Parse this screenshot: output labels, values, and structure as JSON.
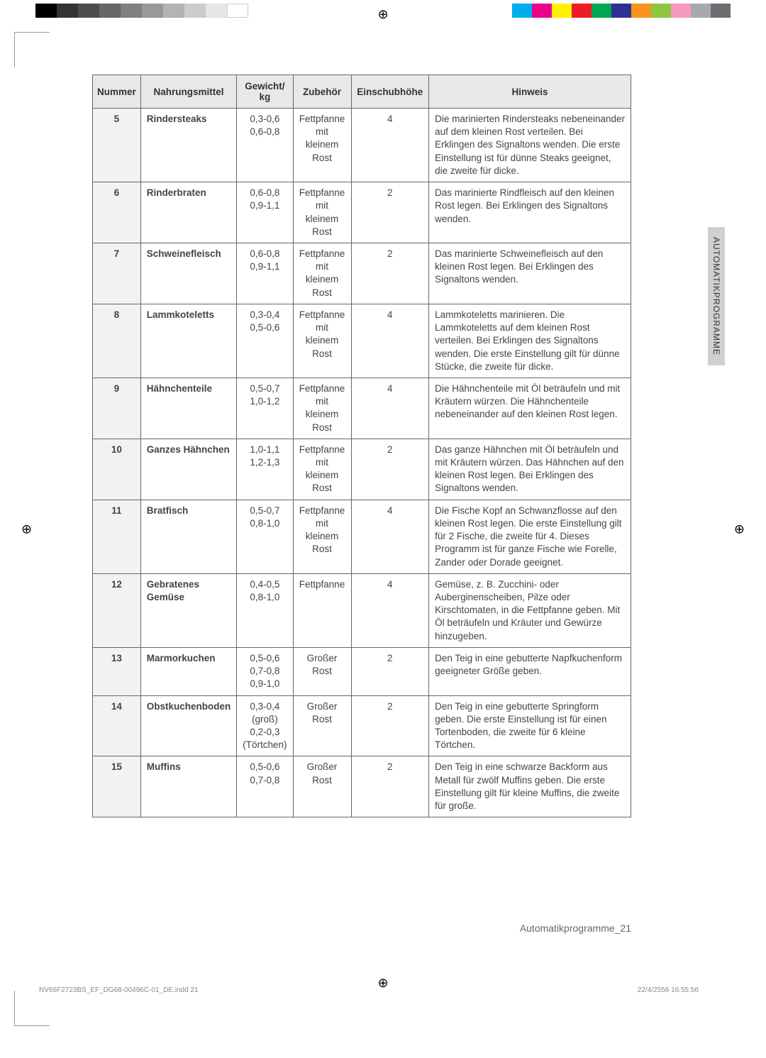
{
  "grey_shades": [
    "#000000",
    "#333333",
    "#4d4d4d",
    "#666666",
    "#808080",
    "#999999",
    "#b3b3b3",
    "#cccccc",
    "#e6e6e6",
    "#ffffff"
  ],
  "color_swatches": [
    "#00adee",
    "#ec008c",
    "#fff200",
    "#ed1c24",
    "#00a651",
    "#2e3192",
    "#f7941e",
    "#8dc63f",
    "#f49ac1",
    "#a7a9ac",
    "#6d6e71"
  ],
  "headers": {
    "num": "Nummer",
    "food": "Nahrungsmittel",
    "weight": "Gewicht/ kg",
    "access": "Zubehör",
    "level": "Einschubhöhe",
    "hint": "Hinweis"
  },
  "side_tab": "AUTOMATIKPROGRAMME",
  "footer_section": "Automatikprogramme_21",
  "footer_file": "NV66F2723BS_EF_DG68-00496C-01_DE.indd   21",
  "footer_time": "22/4/2556   16:55:56",
  "rows": [
    {
      "n": "5",
      "food": "Rindersteaks",
      "weight": "0,3-0,6\n0,6-0,8",
      "access": "Fettpfanne mit kleinem Rost",
      "level": "4",
      "hint": "Die marinierten Rindersteaks nebeneinander auf dem kleinen Rost verteilen. Bei Erklingen des Signaltons wenden. Die erste Einstellung ist für dünne Steaks geeignet, die zweite für dicke."
    },
    {
      "n": "6",
      "food": "Rinderbraten",
      "weight": "0,6-0,8\n0,9-1,1",
      "access": "Fettpfanne mit kleinem Rost",
      "level": "2",
      "hint": "Das marinierte Rindfleisch auf den kleinen Rost legen. Bei Erklingen des Signaltons wenden."
    },
    {
      "n": "7",
      "food": "Schweinefleisch",
      "weight": "0,6-0,8\n0,9-1,1",
      "access": "Fettpfanne mit kleinem Rost",
      "level": "2",
      "hint": "Das marinierte Schweinefleisch auf den kleinen Rost legen. Bei Erklingen des Signaltons wenden."
    },
    {
      "n": "8",
      "food": "Lammkoteletts",
      "weight": "0,3-0,4\n0,5-0,6",
      "access": "Fettpfanne mit kleinem Rost",
      "level": "4",
      "hint": "Lammkoteletts marinieren. Die Lammkoteletts auf dem kleinen Rost verteilen. Bei Erklingen des Signaltons wenden. Die erste Einstellung gilt für dünne Stücke, die zweite für dicke."
    },
    {
      "n": "9",
      "food": "Hähnchenteile",
      "weight": "0,5-0,7\n1,0-1,2",
      "access": "Fettpfanne mit kleinem Rost",
      "level": "4",
      "hint": "Die Hähnchenteile mit Öl beträufeln und mit Kräutern würzen. Die Hähnchenteile nebeneinander auf den kleinen Rost legen."
    },
    {
      "n": "10",
      "food": "Ganzes Hähnchen",
      "weight": "1,0-1,1\n1,2-1,3",
      "access": "Fettpfanne mit kleinem Rost",
      "level": "2",
      "hint": "Das ganze Hähnchen mit Öl beträufeln und mit Kräutern würzen. Das Hähnchen auf den kleinen Rost legen. Bei Erklingen des Signaltons wenden."
    },
    {
      "n": "11",
      "food": "Bratfisch",
      "weight": "0,5-0,7\n0,8-1,0",
      "access": "Fettpfanne mit kleinem Rost",
      "level": "4",
      "hint": "Die Fische Kopf an Schwanzflosse auf den kleinen Rost legen. Die erste Einstellung gilt für 2 Fische, die zweite für 4. Dieses Programm ist für ganze Fische wie Forelle, Zander oder Dorade geeignet."
    },
    {
      "n": "12",
      "food": "Gebratenes Gemüse",
      "weight": "0,4-0,5\n0,8-1,0",
      "access": "Fettpfanne",
      "level": "4",
      "hint": "Gemüse, z. B. Zucchini- oder Auberginenscheiben, Pilze oder Kirschtomaten, in die Fettpfanne geben. Mit Öl beträufeln und Kräuter und Gewürze hinzugeben."
    },
    {
      "n": "13",
      "food": "Marmorkuchen",
      "weight": "0,5-0,6\n0,7-0,8\n0,9-1,0",
      "access": "Großer Rost",
      "level": "2",
      "hint": "Den Teig in eine gebutterte Napfkuchenform geeigneter Größe geben."
    },
    {
      "n": "14",
      "food": "Obstkuchenboden",
      "weight": "0,3-0,4 (groß)\n0,2-0,3 (Törtchen)",
      "access": "Großer Rost",
      "level": "2",
      "hint": "Den Teig in eine gebutterte Springform geben. Die erste Einstellung ist für einen Tortenboden, die zweite für 6 kleine Törtchen."
    },
    {
      "n": "15",
      "food": "Muffins",
      "weight": "0,5-0,6\n0,7-0,8",
      "access": "Großer Rost",
      "level": "2",
      "hint": "Den Teig in eine schwarze Backform aus Metall für zwölf Muffins geben. Die erste Einstellung gilt für kleine Muffins, die zweite für große."
    }
  ]
}
